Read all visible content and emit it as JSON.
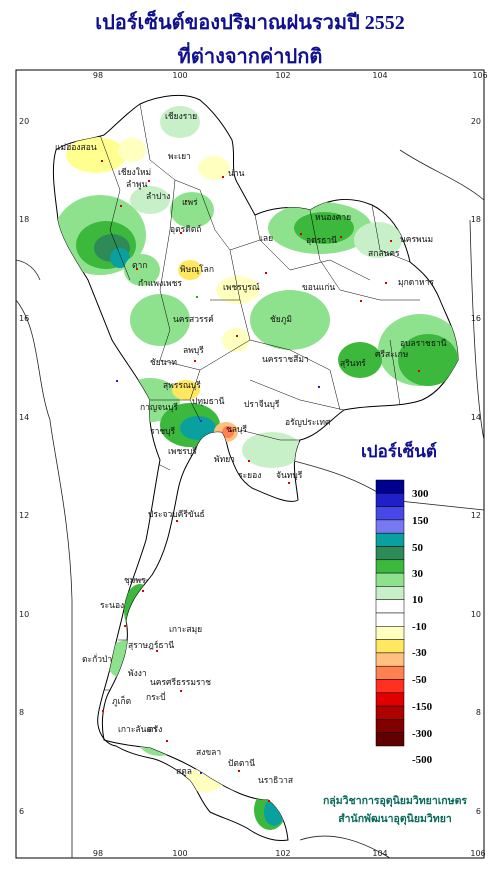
{
  "title": {
    "line1": "เปอร์เซ็นต์ของปริมาณฝนรวมปี 2552",
    "line2": "ที่ต่างจากค่าปกติ"
  },
  "axes": {
    "lon_ticks": [
      "98",
      "100",
      "102",
      "104",
      "106"
    ],
    "lat_ticks": [
      "20",
      "18",
      "16",
      "14",
      "12",
      "10",
      "8",
      "6"
    ]
  },
  "legend": {
    "title": "เปอร์เซ็นต์",
    "labels": [
      "300",
      "150",
      "50",
      "30",
      "10",
      "-10",
      "-30",
      "-50",
      "-150",
      "-300",
      "-500"
    ],
    "colors": [
      "#000090",
      "#2020c8",
      "#4848e8",
      "#7878f0",
      "#0aa0a0",
      "#2e8b57",
      "#3cb93c",
      "#8ee28e",
      "#c8f0c8",
      "#ffffff",
      "#ffffff",
      "#ffffc0",
      "#ffe860",
      "#ffc080",
      "#ff8050",
      "#ff3020",
      "#e00000",
      "#b00000",
      "#800000",
      "#600000"
    ]
  },
  "provinces": [
    {
      "name": "เชียงราย"
    },
    {
      "name": "แม่ฮ่องสอน"
    },
    {
      "name": "เชียงใหม่"
    },
    {
      "name": "พะเยา"
    },
    {
      "name": "ลำพูน"
    },
    {
      "name": "น่าน"
    },
    {
      "name": "ลำปาง"
    },
    {
      "name": "แพร่"
    },
    {
      "name": "อุตรดิตถ์"
    },
    {
      "name": "หนองคาย"
    },
    {
      "name": "อุดรธานี"
    },
    {
      "name": "นครพนม"
    },
    {
      "name": "สกลนคร"
    },
    {
      "name": "เลย"
    },
    {
      "name": "มุกดาหาร"
    },
    {
      "name": "ตาก"
    },
    {
      "name": "พิษณุโลก"
    },
    {
      "name": "กำแพงเพชร"
    },
    {
      "name": "เพชรบูรณ์"
    },
    {
      "name": "ขอนแก่น"
    },
    {
      "name": "นครสวรรค์"
    },
    {
      "name": "ชัยภูมิ"
    },
    {
      "name": "อุบลราชธานี"
    },
    {
      "name": "ลพบุรี"
    },
    {
      "name": "ชัยนาท"
    },
    {
      "name": "ศรีสะเกษ"
    },
    {
      "name": "สุรินทร์"
    },
    {
      "name": "นครราชสีมา"
    },
    {
      "name": "สุพรรณบุรี"
    },
    {
      "name": "ปทุมธานี"
    },
    {
      "name": "กาญจนบุรี"
    },
    {
      "name": "ปราจีนบุรี"
    },
    {
      "name": "อรัญประเทศ"
    },
    {
      "name": "ราชบุรี"
    },
    {
      "name": "ชลบุรี"
    },
    {
      "name": "เพชรบุรี"
    },
    {
      "name": "พัทยา"
    },
    {
      "name": "ระยอง"
    },
    {
      "name": "จันทบุรี"
    },
    {
      "name": "ประจวบคีรีขันธ์"
    },
    {
      "name": "ชุมพร"
    },
    {
      "name": "ระนอง"
    },
    {
      "name": "เกาะสมุย"
    },
    {
      "name": "สุราษฎร์ธานี"
    },
    {
      "name": "ตะกั่วป่า"
    },
    {
      "name": "พังงา"
    },
    {
      "name": "นครศรีธรรมราช"
    },
    {
      "name": "กระบี่"
    },
    {
      "name": "ภูเก็ต"
    },
    {
      "name": "เกาะลันตา"
    },
    {
      "name": "ตรัง"
    },
    {
      "name": "สงขลา"
    },
    {
      "name": "สตูล"
    },
    {
      "name": "ปัตตานี"
    },
    {
      "name": "นราธิวาส"
    }
  ],
  "credit": {
    "line1": "กลุ่มวิชาการอุตุนิยมวิทยาเกษตร",
    "line2": "สำนักพัฒนาอุตุนิยมวิทยา"
  }
}
